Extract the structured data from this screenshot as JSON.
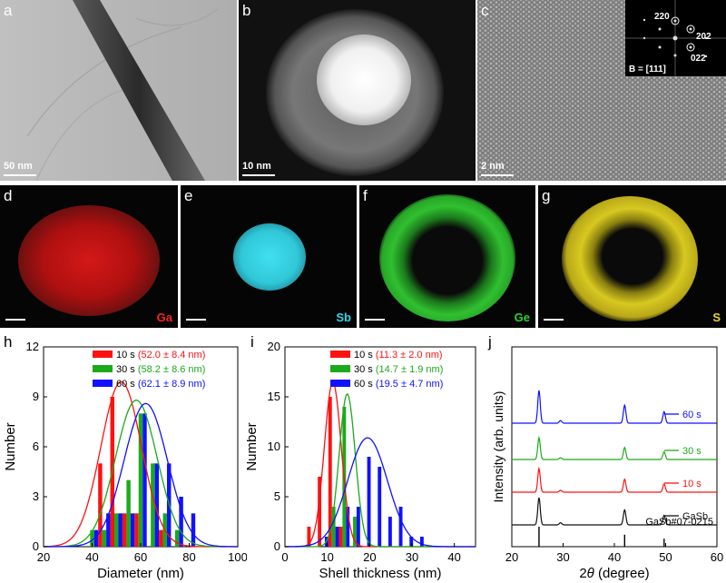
{
  "panels": {
    "a": {
      "label": "a",
      "scalebar": "50 nm"
    },
    "b": {
      "label": "b",
      "scalebar": "10 nm"
    },
    "c": {
      "label": "c",
      "scalebar": "2 nm",
      "inset": {
        "spots": [
          "220",
          "202",
          "022"
        ],
        "zone_axis": "B = [111]"
      }
    },
    "d": {
      "label": "d",
      "element": "Ga",
      "color": "#ff2020"
    },
    "e": {
      "label": "e",
      "element": "Sb",
      "color": "#30d8e8"
    },
    "f": {
      "label": "f",
      "element": "Ge",
      "color": "#30d030"
    },
    "g": {
      "label": "g",
      "element": "S",
      "color": "#e8d820"
    }
  },
  "chart_data": [
    {
      "id": "h",
      "label": "h",
      "type": "bar",
      "xlabel": "Diameter (nm)",
      "ylabel": "Number",
      "xlim": [
        20,
        100
      ],
      "ylim": [
        0,
        12
      ],
      "xticks": [
        "20",
        "40",
        "60",
        "80",
        "100"
      ],
      "yticks": [
        "0",
        "3",
        "6",
        "9",
        "12"
      ],
      "bin_centers": [
        40,
        45,
        50,
        55,
        60,
        65,
        70,
        75,
        80
      ],
      "series": [
        {
          "name": "10 s",
          "stat": "(52.0 ± 8.4 nm)",
          "color": "#ff1111",
          "values": [
            0,
            5,
            9,
            2,
            2,
            0,
            1,
            0,
            0
          ],
          "fit": {
            "mu": 52.0,
            "sigma": 8.4,
            "peak": 9.9
          }
        },
        {
          "name": "30 s",
          "stat": "(58.2 ± 8.6 nm)",
          "color": "#1aaa1a",
          "values": [
            1,
            1,
            2,
            4,
            8,
            5,
            2,
            1,
            0
          ],
          "fit": {
            "mu": 58.2,
            "sigma": 8.6,
            "peak": 8.8
          }
        },
        {
          "name": "60 s",
          "stat": "(62.1 ± 8.9 nm)",
          "color": "#1111ff",
          "values": [
            1,
            2,
            2,
            2,
            8,
            5,
            5,
            3,
            2
          ],
          "fit": {
            "mu": 62.1,
            "sigma": 8.9,
            "peak": 8.6
          }
        }
      ]
    },
    {
      "id": "i",
      "label": "i",
      "type": "bar",
      "xlabel": "Shell thickness (nm)",
      "ylabel": "Number",
      "xlim": [
        0,
        45
      ],
      "ylim": [
        0,
        20
      ],
      "xticks": [
        "0",
        "10",
        "20",
        "30",
        "40"
      ],
      "yticks": [
        "0",
        "5",
        "10",
        "15",
        "20"
      ],
      "bin_centers": [
        6.5,
        9,
        11.5,
        14,
        16.5,
        19,
        21.5,
        24,
        26.5,
        29,
        31.5
      ],
      "series": [
        {
          "name": "10 s",
          "stat": "(11.3 ± 2.0 nm)",
          "color": "#ff1111",
          "values": [
            2,
            7,
            15,
            2,
            0,
            0,
            0,
            0,
            0,
            0,
            0
          ],
          "fit": {
            "mu": 11.3,
            "sigma": 2.0,
            "peak": 16.5
          }
        },
        {
          "name": "30 s",
          "stat": "(14.7 ± 1.9 nm)",
          "color": "#1aaa1a",
          "values": [
            0,
            0,
            4,
            14,
            3,
            0,
            0,
            0,
            0,
            0,
            0
          ],
          "fit": {
            "mu": 14.7,
            "sigma": 1.9,
            "peak": 15.3
          }
        },
        {
          "name": "60 s",
          "stat": "(19.5 ± 4.7 nm)",
          "color": "#1111ff",
          "values": [
            0,
            1,
            2,
            4,
            4,
            9,
            8,
            3,
            4,
            1,
            1
          ],
          "fit": {
            "mu": 19.5,
            "sigma": 4.7,
            "peak": 10.9
          }
        }
      ]
    },
    {
      "id": "j",
      "label": "j",
      "type": "line",
      "xlabel": "2θ (degree)",
      "xlabel_parts": {
        "theta": "2",
        "theta_sym": "θ",
        "rest": " (degree)"
      },
      "ylabel": "Intensity (arb. units)",
      "xlim": [
        20,
        60
      ],
      "xticks": [
        "20",
        "30",
        "40",
        "50",
        "60"
      ],
      "peaks": [
        25.3,
        29.5,
        42.0,
        49.7
      ],
      "peak_rel": [
        1.0,
        0.08,
        0.55,
        0.35
      ],
      "series": [
        {
          "name": "60 s",
          "color": "#1111ff"
        },
        {
          "name": "30 s",
          "color": "#1aaa1a"
        },
        {
          "name": "10 s",
          "color": "#ff1111"
        },
        {
          "name": "GaSb",
          "color": "#111111"
        }
      ],
      "reference": {
        "name": "GaSb#07-0215",
        "positions": [
          25.3,
          42.0,
          49.7
        ],
        "heights": [
          1.0,
          0.6,
          0.4
        ]
      }
    }
  ]
}
